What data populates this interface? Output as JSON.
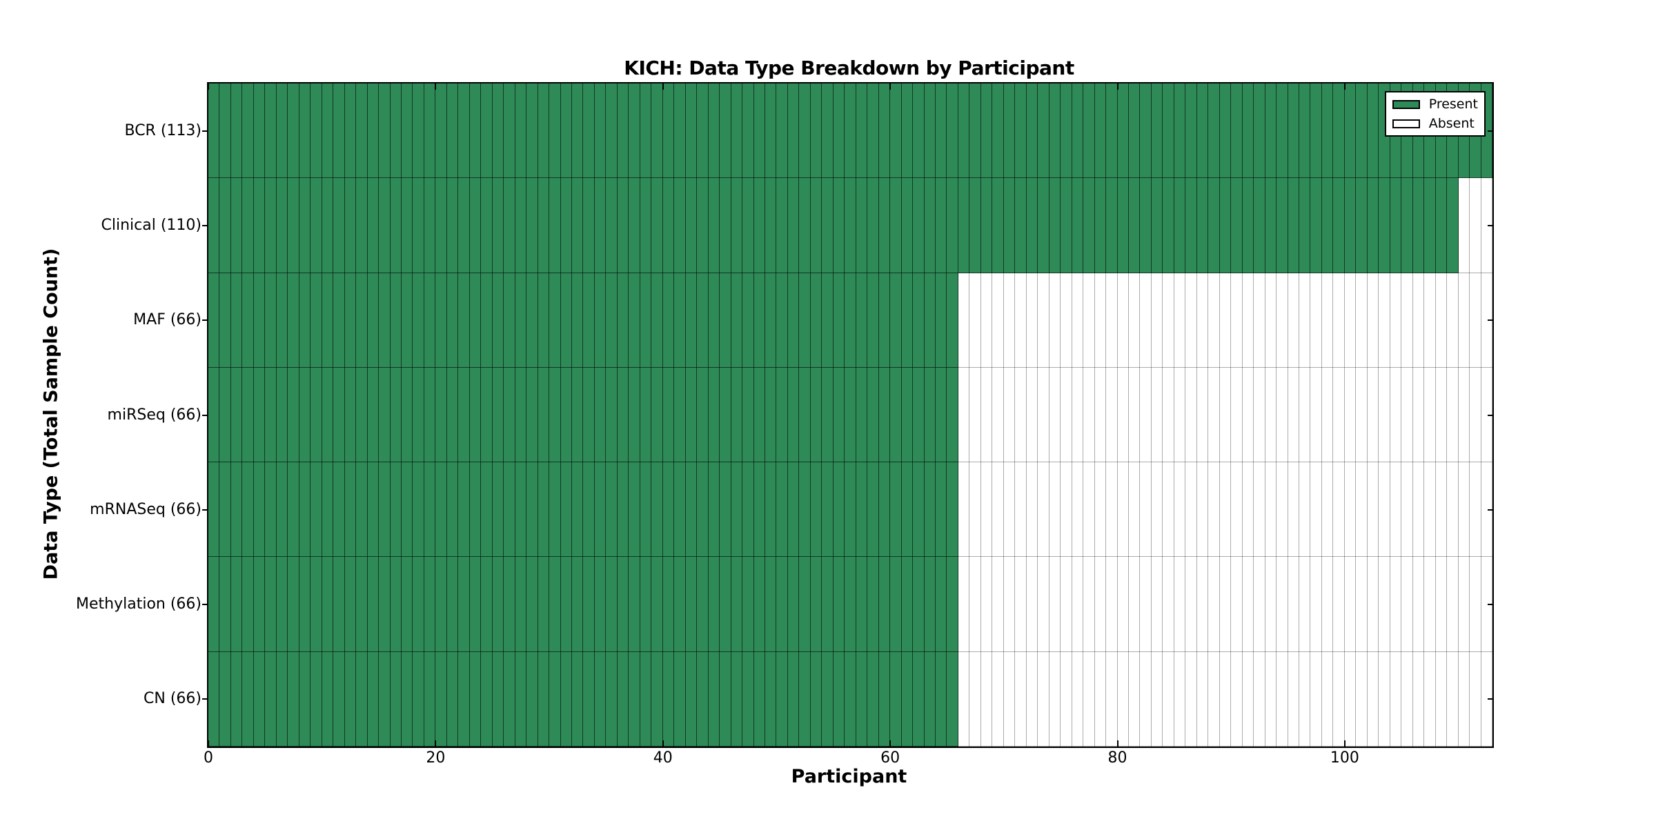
{
  "chart_data": {
    "type": "heatmap",
    "title": "KICH: Data Type Breakdown by Participant",
    "xlabel": "Participant",
    "ylabel": "Data Type (Total Sample Count)",
    "xlim": [
      0,
      113
    ],
    "x_ticks": [
      0,
      20,
      40,
      60,
      80,
      100
    ],
    "n_participants": 113,
    "n_rows": 7,
    "grid": "per-participant vertical cell borders, black bar edges",
    "legend_position": "upper right",
    "legend": [
      {
        "label": "Present",
        "color": "#2E8B57"
      },
      {
        "label": "Absent",
        "color": "#FFFFFF"
      }
    ],
    "rows": [
      {
        "label": "BCR",
        "display_label": "BCR (113)",
        "total_samples": 113,
        "present": 113,
        "absent": 0
      },
      {
        "label": "Clinical",
        "display_label": "Clinical (110)",
        "total_samples": 110,
        "present": 110,
        "absent": 3
      },
      {
        "label": "MAF",
        "display_label": "MAF (66)",
        "total_samples": 66,
        "present": 66,
        "absent": 47
      },
      {
        "label": "miRSeq",
        "display_label": "miRSeq (66)",
        "total_samples": 66,
        "present": 66,
        "absent": 47
      },
      {
        "label": "mRNASeq",
        "display_label": "mRNASeq (66)",
        "total_samples": 66,
        "present": 66,
        "absent": 47
      },
      {
        "label": "Methylation",
        "display_label": "Methylation (66)",
        "total_samples": 66,
        "present": 66,
        "absent": 47
      },
      {
        "label": "CN",
        "display_label": "CN (66)",
        "total_samples": 66,
        "present": 66,
        "absent": 47
      }
    ],
    "colors": {
      "present": "#2E8B57",
      "absent": "#FFFFFF",
      "axis": "#000000"
    }
  }
}
